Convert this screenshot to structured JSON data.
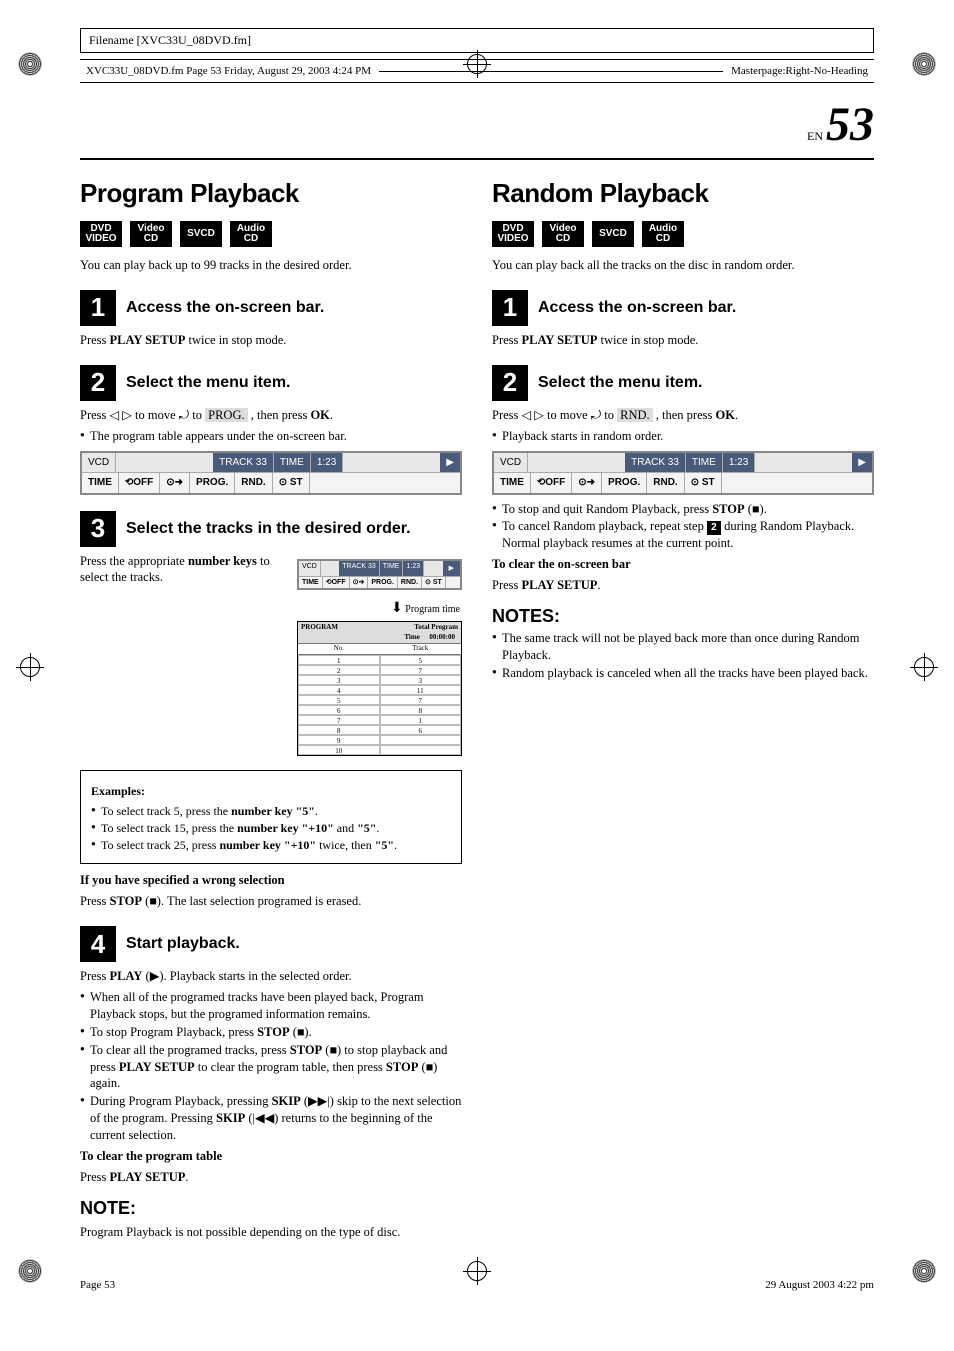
{
  "meta": {
    "filename_label": "Filename [XVC33U_08DVD.fm]",
    "fm_line_left": "XVC33U_08DVD.fm  Page 53  Friday, August 29, 2003  4:24 PM",
    "fm_line_right": "Masterpage:Right-No-Heading",
    "page_en_prefix": "EN",
    "page_num": "53",
    "footer_left": "Page 53",
    "footer_right": "29 August 2003 4:22 pm"
  },
  "badges": [
    "DVD VIDEO",
    "Video CD",
    "SVCD",
    "Audio CD"
  ],
  "left": {
    "title": "Program Playback",
    "intro": "You can play back up to 99 tracks in the desired order.",
    "step1_t": "Access the on-screen bar.",
    "step1_p": [
      "Press ",
      "PLAY SETUP",
      " twice in stop mode."
    ],
    "step2_t": "Select the menu item.",
    "step2_p": [
      "Press ◁ ▷ to move ⤾ to ",
      "PROG.",
      " , then press ",
      "OK",
      "."
    ],
    "step2_b": "The program table appears under the on-screen bar.",
    "step3_t": "Select the tracks in the desired order.",
    "step3_p": [
      "Press the appropriate ",
      "number keys",
      " to select the tracks."
    ],
    "ptime_lbl": "Program time",
    "examples_h": "Examples:",
    "ex1": [
      "To select track 5, press the ",
      "number key \"5\"",
      "."
    ],
    "ex2": [
      "To select track 15, press the ",
      "number key \"+10\"",
      " and ",
      "\"5\"",
      "."
    ],
    "ex3": [
      "To select track 25, press ",
      "number key \"+10\"",
      " twice, then ",
      "\"5\"",
      "."
    ],
    "wrong_h": "If you have specified a wrong selection",
    "wrong_p": [
      "Press ",
      "STOP",
      " (■). The last selection programed is erased."
    ],
    "step4_t": "Start playback.",
    "step4_p": [
      "Press ",
      "PLAY",
      " (▶). Playback starts in the selected order."
    ],
    "s4_b1": "When all of the programed tracks have been played back, Program Playback stops, but the programed information remains.",
    "s4_b2": [
      "To stop Program Playback, press ",
      "STOP",
      " (■)."
    ],
    "s4_b3": [
      "To clear all the programed tracks, press ",
      "STOP",
      " (■) to stop playback and press ",
      "PLAY SETUP",
      " to clear the program table, then press ",
      "STOP",
      " (■) again."
    ],
    "s4_b4": [
      "During Program Playback, pressing ",
      "SKIP",
      " (▶▶|) skip to the next selection of the program. Pressing ",
      "SKIP",
      " (|◀◀) returns to the beginning of the current selection."
    ],
    "clear_h": "To clear the program table",
    "clear_p": [
      "Press ",
      "PLAY SETUP",
      "."
    ],
    "note_h": "NOTE:",
    "note_p": "Program Playback is not possible depending on the type of disc."
  },
  "right": {
    "title": "Random Playback",
    "intro": "You can play back all the tracks on the disc in random order.",
    "step1_t": "Access the on-screen bar.",
    "step1_p": [
      "Press ",
      "PLAY SETUP",
      " twice in stop mode."
    ],
    "step2_t": "Select the menu item.",
    "step2_p": [
      "Press ◁ ▷ to move ⤾ to ",
      "RND.",
      " , then press ",
      "OK",
      "."
    ],
    "step2_b1": "Playback starts in random order.",
    "s2_b2": [
      "To stop and quit Random Playback, press ",
      "STOP",
      " (■)."
    ],
    "s2_b3_a": "To cancel Random playback, repeat step ",
    "s2_b3_b": " during Random Playback. Normal playback resumes at the current point.",
    "clear_h": "To clear the on-screen bar",
    "clear_p": [
      "Press ",
      "PLAY SETUP",
      "."
    ],
    "notes_h": "NOTES:",
    "n1": "The same track will not be played back more than once during Random Playback.",
    "n2": "Random playback is canceled when all the tracks have been played back."
  },
  "osd": {
    "vcd": "VCD",
    "track": "TRACK 33",
    "time_h": "TIME",
    "time_v": "1:23",
    "play": "▶",
    "r2": [
      "TIME",
      "⟲OFF",
      "⊙➜",
      "PROG.",
      "RND.",
      "⊙ ST"
    ],
    "prog_hdr": "PROGRAM",
    "total": "Total Program Time",
    "total_v": "00:00:00",
    "cols": [
      "No.",
      "Track"
    ],
    "rows": [
      [
        "1",
        "5"
      ],
      [
        "2",
        "7"
      ],
      [
        "3",
        "3"
      ],
      [
        "4",
        "11"
      ],
      [
        "5",
        "7"
      ],
      [
        "6",
        "8"
      ],
      [
        "7",
        "1"
      ],
      [
        "8",
        "6"
      ],
      [
        "9",
        ""
      ],
      [
        "10",
        ""
      ]
    ]
  }
}
